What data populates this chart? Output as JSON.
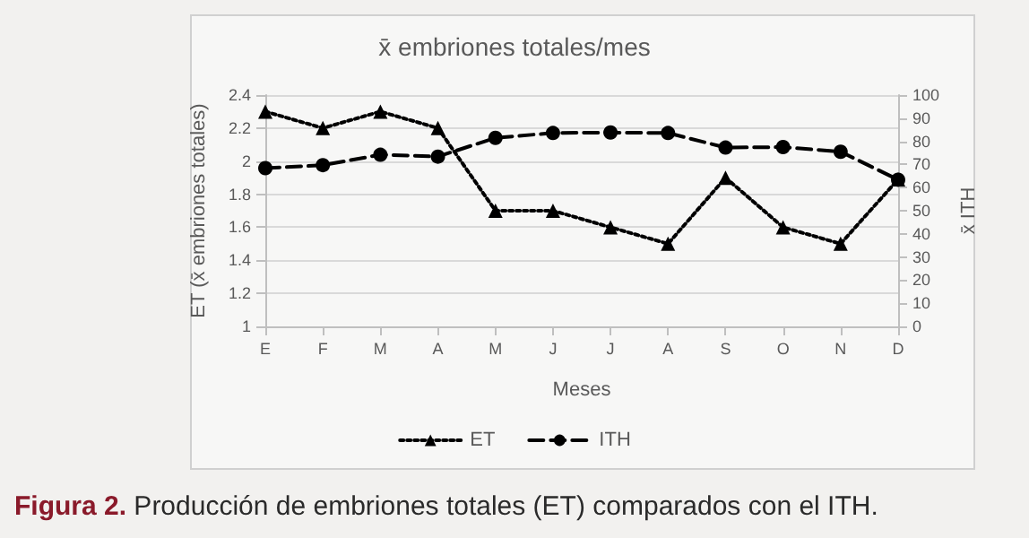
{
  "chart_data": {
    "type": "line",
    "title": "x̄ embriones totales/mes",
    "xlabel": "Meses",
    "ylabel": "ET (x̄ embriones totales)",
    "y2label": "x̄ ITH",
    "categories": [
      "E",
      "F",
      "M",
      "A",
      "M",
      "J",
      "J",
      "A",
      "S",
      "O",
      "N",
      "D"
    ],
    "series": [
      {
        "name": "ET",
        "color": "#000000",
        "marker": "triangle",
        "line_style": "dotted",
        "values": [
          2.3,
          2.2,
          2.3,
          2.2,
          1.7,
          1.7,
          1.6,
          1.5,
          1.9,
          1.6,
          1.5,
          1.89
        ]
      },
      {
        "name": "ITH",
        "color": "#000000",
        "marker": "circle",
        "line_style": "dashed",
        "axis": "y2",
        "values": [
          68.4,
          69.7,
          74.2,
          73.4,
          81.5,
          83.6,
          83.8,
          83.6,
          77.3,
          77.5,
          75.5,
          63.4
        ]
      }
    ],
    "ylim": [
      1,
      2.4
    ],
    "yticks": [
      1,
      1.2,
      1.4,
      1.6,
      1.8,
      2,
      2.2,
      2.4
    ],
    "y2lim": [
      0,
      100
    ],
    "y2ticks": [
      0,
      10,
      20,
      30,
      40,
      50,
      60,
      70,
      80,
      90,
      100
    ],
    "grid": "y",
    "legend": "bottom",
    "annotations": [
      "Figura 2. Producción de embriones totales (ET) comparados con el ITH."
    ]
  }
}
